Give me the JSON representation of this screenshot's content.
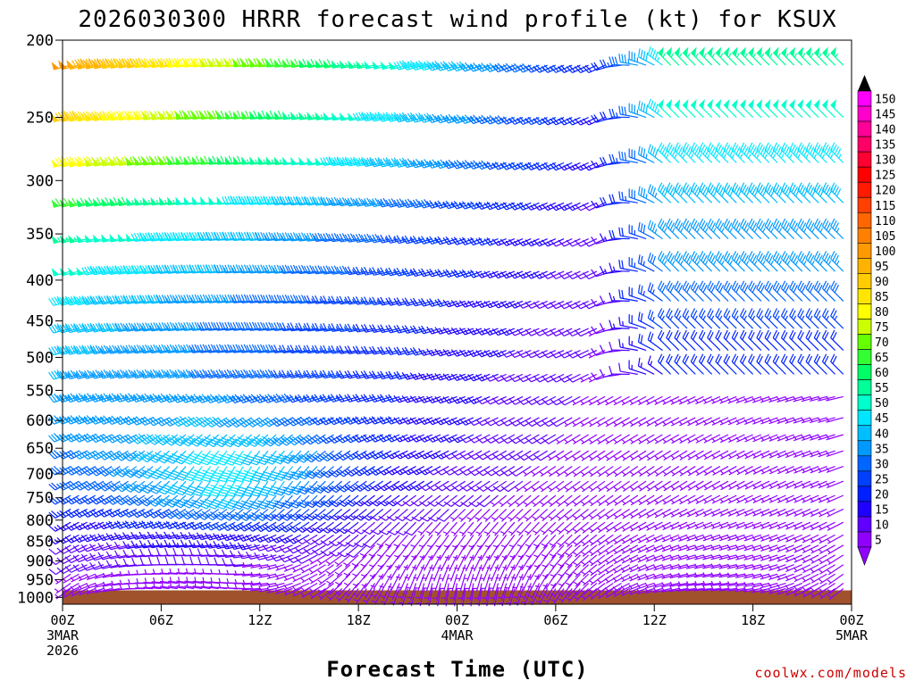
{
  "chart_data": {
    "type": "wind-profile",
    "title": "2026030300 HRRR forecast wind profile (kt) for KSUX",
    "xlabel": "Forecast Time (UTC)",
    "credit": "coolwx.com/models",
    "y_ticks": [
      "200",
      "250",
      "300",
      "350",
      "400",
      "450",
      "500",
      "550",
      "600",
      "650",
      "700",
      "750",
      "800",
      "850",
      "900",
      "950",
      "1000"
    ],
    "y_tick_values": [
      200,
      250,
      300,
      350,
      400,
      450,
      500,
      550,
      600,
      650,
      700,
      750,
      800,
      850,
      900,
      950,
      1000
    ],
    "ylim": [
      200,
      1020
    ],
    "x_ticks": [
      {
        "h": 0,
        "l1": "00Z",
        "l2": "3MAR",
        "l3": "2026"
      },
      {
        "h": 6,
        "l1": "06Z",
        "l2": "",
        "l3": ""
      },
      {
        "h": 12,
        "l1": "12Z",
        "l2": "",
        "l3": ""
      },
      {
        "h": 18,
        "l1": "18Z",
        "l2": "",
        "l3": ""
      },
      {
        "h": 24,
        "l1": "00Z",
        "l2": "4MAR",
        "l3": ""
      },
      {
        "h": 30,
        "l1": "06Z",
        "l2": "",
        "l3": ""
      },
      {
        "h": 36,
        "l1": "12Z",
        "l2": "",
        "l3": ""
      },
      {
        "h": 42,
        "l1": "18Z",
        "l2": "",
        "l3": ""
      },
      {
        "h": 48,
        "l1": "00Z",
        "l2": "5MAR",
        "l3": ""
      }
    ],
    "xlim_hours": [
      0,
      48
    ],
    "surface_pressure": 980,
    "surface_color": "#a0522d",
    "colorbar": {
      "labels": [
        "150",
        "145",
        "140",
        "135",
        "130",
        "125",
        "120",
        "115",
        "110",
        "105",
        "100",
        "95",
        "90",
        "85",
        "80",
        "75",
        "70",
        "65",
        "60",
        "55",
        "50",
        "45",
        "40",
        "35",
        "30",
        "25",
        "20",
        "15",
        "10",
        "5"
      ],
      "colors": [
        "#ff00ff",
        "#ff00cc",
        "#ff0099",
        "#ff0066",
        "#ff0033",
        "#ff0000",
        "#ff1a00",
        "#ff4000",
        "#ff6600",
        "#ff8000",
        "#ff9900",
        "#ffb300",
        "#ffcc00",
        "#ffe600",
        "#ffff00",
        "#ccff00",
        "#66ff00",
        "#33ff33",
        "#00ff66",
        "#00ff99",
        "#00ffcc",
        "#00e6ff",
        "#00bfff",
        "#0099ff",
        "#0066ff",
        "#0040ff",
        "#0020ff",
        "#2000ff",
        "#6000ff",
        "#9000ff"
      ]
    },
    "wind_profile": {
      "levels_hpa": [
        215,
        250,
        285,
        320,
        355,
        390,
        425,
        460,
        490,
        525,
        560,
        595,
        625,
        655,
        685,
        715,
        745,
        775,
        805,
        835,
        860,
        885,
        910,
        935,
        960,
        975
      ],
      "hours": 48,
      "columns_per_hour": 2,
      "jet_speed_kt": [
        [
          215,
          100
        ],
        [
          250,
          90
        ],
        [
          285,
          82
        ],
        [
          320,
          65
        ],
        [
          355,
          55
        ],
        [
          390,
          50
        ],
        [
          425,
          45
        ],
        [
          460,
          42
        ],
        [
          490,
          40
        ],
        [
          525,
          38
        ],
        [
          560,
          36
        ],
        [
          595,
          35
        ],
        [
          625,
          33
        ],
        [
          655,
          30
        ],
        [
          685,
          27
        ],
        [
          715,
          25
        ],
        [
          745,
          22
        ],
        [
          775,
          18
        ],
        [
          805,
          15
        ],
        [
          835,
          12
        ],
        [
          860,
          12
        ],
        [
          885,
          10
        ],
        [
          910,
          9
        ],
        [
          935,
          7
        ],
        [
          960,
          6
        ],
        [
          975,
          5
        ]
      ],
      "speed_decay_per_hour": 0.025,
      "upper_trough_onset_hour": 33,
      "post_trough_jet_speed_kt": 45,
      "low_level_jet_core_hpa": 700,
      "low_level_jet_peak_hour": 11,
      "low_level_jet_peak_kt": 25,
      "calm_speed_kt": 5
    }
  }
}
